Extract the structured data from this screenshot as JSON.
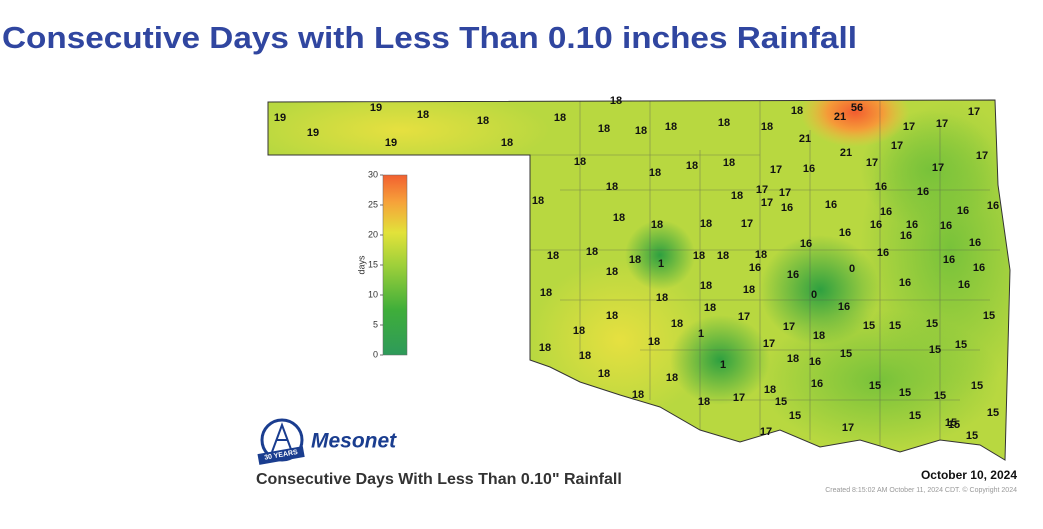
{
  "title": "Consecutive Days with Less Than 0.10 inches Rainfall",
  "map": {
    "stations": [
      19,
      19,
      18,
      18,
      18,
      18,
      18,
      18,
      18,
      18,
      18,
      18,
      21,
      56,
      17,
      17,
      17,
      19,
      19,
      18,
      21,
      21,
      17,
      17,
      17,
      17,
      18,
      18,
      18,
      18,
      17,
      16,
      18,
      18,
      17,
      17,
      16,
      16,
      18,
      17,
      16,
      16,
      16,
      16,
      16,
      18,
      18,
      18,
      17,
      16,
      16,
      16,
      16,
      16,
      16,
      16,
      18,
      18,
      18,
      1,
      18,
      18,
      18,
      16,
      16,
      18,
      16,
      0,
      16,
      16,
      18,
      18,
      18,
      0,
      16,
      16,
      18,
      18,
      16,
      18,
      18,
      1,
      17,
      17,
      15,
      15,
      15,
      15,
      18,
      18,
      18,
      17,
      18,
      15,
      15,
      18,
      1,
      18,
      16,
      15,
      18,
      18,
      16,
      15,
      15,
      15,
      15,
      18,
      18,
      17,
      18,
      15,
      15,
      15,
      15,
      15,
      17,
      17,
      15,
      15
    ]
  },
  "legend": {
    "label": "days",
    "lim": [
      0,
      30
    ],
    "ticks": [
      0,
      5,
      10,
      15,
      20,
      25,
      30
    ]
  },
  "logo": {
    "name": "Mesonet",
    "badge": "30 YEARS"
  },
  "caption": "Consecutive Days With Less Than 0.10\" Rainfall",
  "date": "October 10, 2024",
  "credit": "Created 8:15:02 AM October 11, 2024 CDT. © Copyright 2024"
}
